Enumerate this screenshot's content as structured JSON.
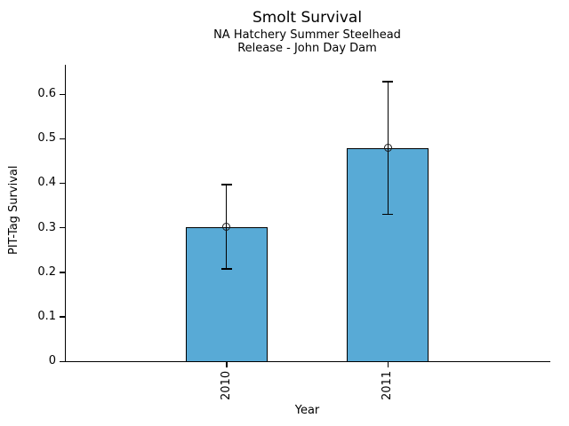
{
  "chart_data": {
    "type": "bar",
    "title": "Smolt Survival",
    "subtitle1": "NA Hatchery Summer Steelhead",
    "subtitle2": "Release - John Day Dam",
    "xlabel": "Year",
    "ylabel": "PIT-Tag Survival",
    "categories": [
      "2010",
      "2011"
    ],
    "values": [
      0.302,
      0.479
    ],
    "error_low": [
      0.207,
      0.33
    ],
    "error_high": [
      0.397,
      0.628
    ],
    "ylim": [
      0,
      0.666
    ],
    "yticks": [
      0,
      0.1,
      0.2,
      0.3,
      0.4,
      0.5,
      0.6
    ],
    "ytick_labels": [
      "0",
      "0.1",
      "0.2",
      "0.3",
      "0.4",
      "0.5",
      "0.6"
    ],
    "grid": false,
    "legend": "none",
    "marker": "open-circle",
    "bar_color": "#58AAD6",
    "bar_edge_color": "#000000",
    "axis_color": "#000000",
    "text_color": "#000000"
  }
}
